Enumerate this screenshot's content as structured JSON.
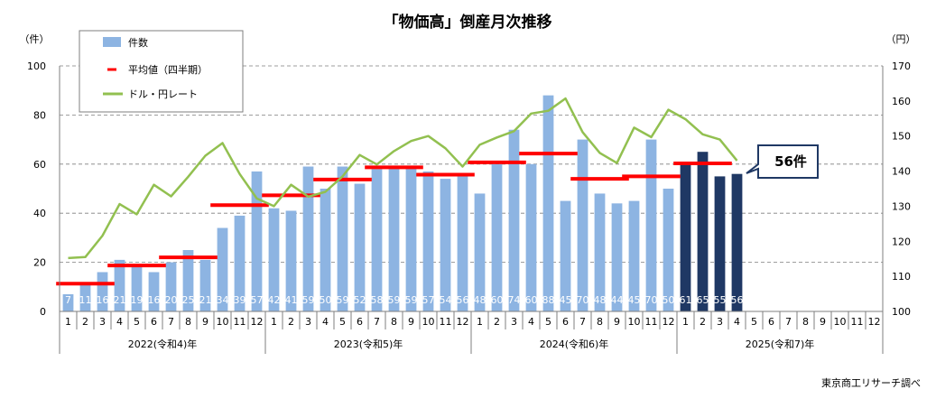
{
  "chart_data": {
    "type": "bar",
    "title": "「物価高」倒産月次推移",
    "left_axis_unit": "（件）",
    "right_axis_unit": "（円）",
    "ylim": [
      0,
      100
    ],
    "y_ticks": [
      "0",
      "20",
      "40",
      "60",
      "80",
      "100"
    ],
    "y2lim": [
      100,
      170
    ],
    "y2_ticks": [
      "100",
      "110",
      "120",
      "130",
      "140",
      "150",
      "160",
      "170"
    ],
    "month_labels": [
      "1",
      "2",
      "3",
      "4",
      "5",
      "6",
      "7",
      "8",
      "9",
      "10",
      "11",
      "12",
      "1",
      "2",
      "3",
      "4",
      "5",
      "6",
      "7",
      "8",
      "9",
      "10",
      "11",
      "12",
      "1",
      "2",
      "3",
      "4",
      "5",
      "6",
      "7",
      "8",
      "9",
      "10",
      "11",
      "12",
      "1",
      "2",
      "3",
      "4",
      "5",
      "6",
      "7",
      "8",
      "9",
      "10",
      "11",
      "12"
    ],
    "years": [
      "2022(令和4)年",
      "2023(令和5)年",
      "2024(令和6)年",
      "2025(令和7)年"
    ],
    "series": [
      {
        "name": "件数",
        "kind": "bar",
        "color": "#8db4e2",
        "highlight_color": "#1f3864",
        "highlight_from_index": 36,
        "values": [
          7,
          11,
          16,
          21,
          19,
          16,
          20,
          25,
          21,
          34,
          39,
          57,
          42,
          41,
          59,
          50,
          59,
          52,
          58,
          59,
          59,
          57,
          54,
          56,
          48,
          60,
          74,
          60,
          88,
          45,
          70,
          48,
          44,
          45,
          70,
          50,
          61,
          65,
          55,
          56
        ],
        "labels": [
          "7",
          "11",
          "16",
          "21",
          "19",
          "16",
          "20",
          "25",
          "21",
          "34",
          "39",
          "57",
          "42",
          "41",
          "59",
          "50",
          "59",
          "52",
          "58",
          "59",
          "59",
          "57",
          "54",
          "56",
          "48",
          "60",
          "74",
          "60",
          "88",
          "45",
          "70",
          "48",
          "44",
          "45",
          "70",
          "50",
          "61",
          "65",
          "55",
          "56"
        ]
      },
      {
        "name": "平均値（四半期）",
        "kind": "quarter-average",
        "color": "#ff0000",
        "values": [
          11.3,
          18.7,
          22,
          43.3,
          47.3,
          53.7,
          58.7,
          55.7,
          60.7,
          64.3,
          54,
          55,
          60.3,
          null,
          null,
          null
        ]
      },
      {
        "name": "ドル・円レート",
        "kind": "line",
        "axis": "right",
        "color": "#92c050",
        "values": [
          115.2,
          115.5,
          121.6,
          130.6,
          127.7,
          136.1,
          132.8,
          138.4,
          144.4,
          148.0,
          139.2,
          132.2,
          130.0,
          136.1,
          132.7,
          134.1,
          138.5,
          144.6,
          141.9,
          145.7,
          148.6,
          150.0,
          146.5,
          141.3,
          147.5,
          149.6,
          151.4,
          156.4,
          157.2,
          160.7,
          151.1,
          145.2,
          142.3,
          152.4,
          149.7,
          157.5,
          154.8,
          150.5,
          149.0,
          143.0
        ]
      }
    ],
    "callout": "56件",
    "source_note": "東京商工リサーチ調べ"
  }
}
